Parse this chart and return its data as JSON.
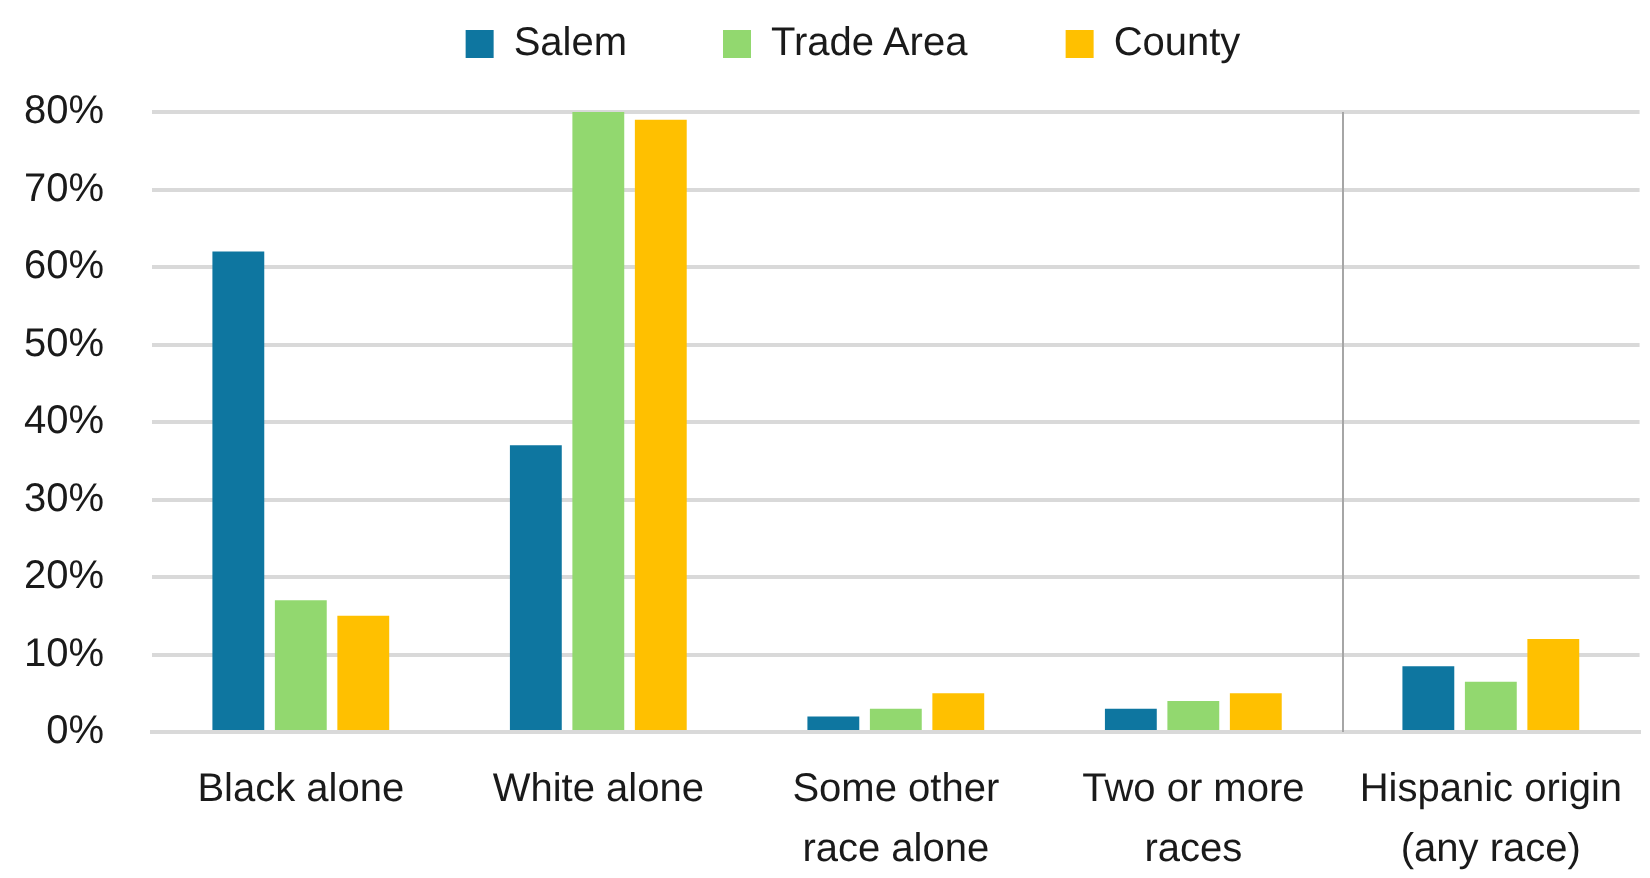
{
  "chart_data": {
    "type": "bar",
    "categories": [
      "Black alone",
      "White alone",
      "Some other race alone",
      "Two or more races",
      "Hispanic origin (any race)"
    ],
    "series": [
      {
        "name": "Salem",
        "color": "#0e76a0",
        "values": [
          62,
          37,
          2,
          3,
          8.5
        ]
      },
      {
        "name": "Trade Area",
        "color": "#92d86f",
        "values": [
          17,
          80,
          3,
          4,
          6.5
        ]
      },
      {
        "name": "County",
        "color": "#ffc000",
        "values": [
          15,
          79,
          5,
          5,
          12
        ]
      }
    ],
    "ylim": [
      0,
      80
    ],
    "yticks": [
      {
        "value": 0,
        "label": "0%"
      },
      {
        "value": 10,
        "label": "10%"
      },
      {
        "value": 20,
        "label": "20%"
      },
      {
        "value": 30,
        "label": "30%"
      },
      {
        "value": 40,
        "label": "40%"
      },
      {
        "value": 50,
        "label": "50%"
      },
      {
        "value": 60,
        "label": "60%"
      },
      {
        "value": 70,
        "label": "70%"
      },
      {
        "value": 80,
        "label": "80%"
      }
    ],
    "ref_lines": [
      {
        "axis": "x",
        "value": "Hispanic origin (any race)",
        "color": "#a6a6a6"
      }
    ],
    "grid": "y",
    "legend": "top"
  }
}
